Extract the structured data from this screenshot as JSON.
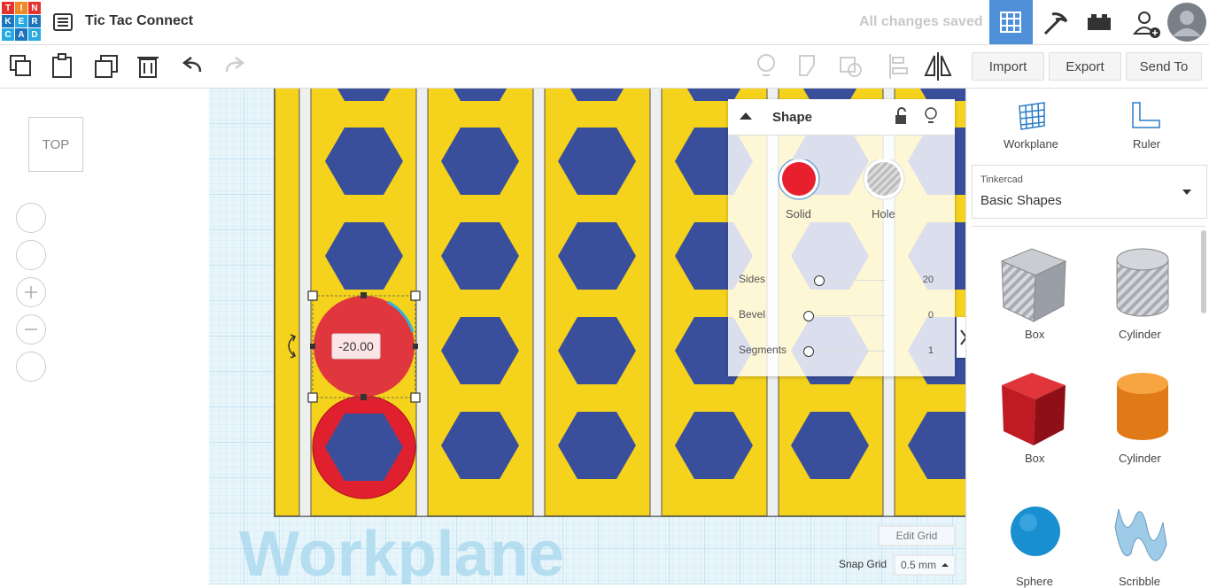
{
  "header": {
    "logo": [
      "T",
      "I",
      "N",
      "K",
      "E",
      "R",
      "C",
      "A",
      "D"
    ],
    "title": "Tic Tac Connect",
    "status": "All changes saved"
  },
  "toolbar": {
    "buttons": [
      "Import",
      "Export",
      "Send To"
    ]
  },
  "view_cube": "TOP",
  "canvas": {
    "rotation_label": "-20.00",
    "watermark": "Workplane",
    "edit_grid": "Edit Grid",
    "snap_grid_label": "Snap Grid",
    "snap_grid_value": "0.5 mm"
  },
  "inspector": {
    "title": "Shape",
    "solid": "Solid",
    "hole": "Hole",
    "params": [
      {
        "name": "Sides",
        "value": 20
      },
      {
        "name": "Bevel",
        "value": 0
      },
      {
        "name": "Segments",
        "value": 1
      }
    ]
  },
  "sidebar": {
    "tools": [
      "Workplane",
      "Ruler"
    ],
    "library_source": "Tinkercad",
    "library": "Basic Shapes",
    "shapes": [
      "Box",
      "Cylinder",
      "Box",
      "Cylinder",
      "Sphere",
      "Scribble"
    ]
  }
}
